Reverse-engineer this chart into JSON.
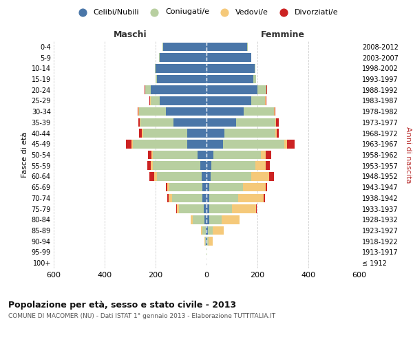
{
  "age_groups": [
    "100+",
    "95-99",
    "90-94",
    "85-89",
    "80-84",
    "75-79",
    "70-74",
    "65-69",
    "60-64",
    "55-59",
    "50-54",
    "45-49",
    "40-44",
    "35-39",
    "30-34",
    "25-29",
    "20-24",
    "15-19",
    "10-14",
    "5-9",
    "0-4"
  ],
  "birth_years": [
    "≤ 1912",
    "1913-1917",
    "1918-1922",
    "1923-1927",
    "1928-1932",
    "1933-1937",
    "1938-1942",
    "1943-1947",
    "1948-1952",
    "1953-1957",
    "1958-1962",
    "1963-1967",
    "1968-1972",
    "1973-1977",
    "1978-1982",
    "1983-1987",
    "1988-1992",
    "1993-1997",
    "1998-2002",
    "2003-2007",
    "2008-2012"
  ],
  "male": {
    "celibi": [
      1,
      1,
      2,
      4,
      8,
      12,
      15,
      15,
      20,
      25,
      35,
      75,
      75,
      130,
      160,
      185,
      220,
      195,
      200,
      185,
      170
    ],
    "coniugati": [
      0,
      0,
      3,
      12,
      45,
      95,
      120,
      130,
      175,
      185,
      175,
      215,
      175,
      130,
      105,
      35,
      20,
      5,
      2,
      2,
      2
    ],
    "vedovi": [
      0,
      0,
      2,
      5,
      10,
      10,
      15,
      10,
      10,
      8,
      5,
      5,
      5,
      3,
      2,
      2,
      1,
      0,
      0,
      0,
      0
    ],
    "divorziati": [
      0,
      0,
      0,
      0,
      0,
      2,
      5,
      5,
      20,
      15,
      15,
      20,
      10,
      5,
      3,
      2,
      1,
      0,
      0,
      0,
      0
    ]
  },
  "female": {
    "nubili": [
      1,
      1,
      3,
      5,
      10,
      10,
      10,
      12,
      15,
      18,
      28,
      65,
      70,
      115,
      145,
      175,
      200,
      185,
      190,
      175,
      160
    ],
    "coniugate": [
      0,
      1,
      5,
      18,
      50,
      90,
      115,
      130,
      160,
      175,
      185,
      240,
      200,
      155,
      120,
      55,
      35,
      10,
      3,
      2,
      2
    ],
    "vedove": [
      0,
      2,
      15,
      45,
      70,
      95,
      100,
      90,
      70,
      40,
      20,
      10,
      5,
      3,
      2,
      2,
      1,
      0,
      0,
      0,
      0
    ],
    "divorziate": [
      0,
      0,
      0,
      0,
      0,
      2,
      5,
      5,
      20,
      15,
      20,
      30,
      10,
      10,
      3,
      2,
      1,
      0,
      0,
      0,
      0
    ]
  },
  "colors": {
    "celibi": "#4a76a8",
    "coniugati": "#b8cfa0",
    "vedovi": "#f5c97a",
    "divorziati": "#cc2222"
  },
  "title": "Popolazione per età, sesso e stato civile - 2013",
  "subtitle": "COMUNE DI MACOMER (NU) - Dati ISTAT 1° gennaio 2013 - Elaborazione TUTTITALIA.IT",
  "xlabel_left": "Maschi",
  "xlabel_right": "Femmine",
  "ylabel_left": "Fasce di età",
  "ylabel_right": "Anni di nascita",
  "xlim": 600,
  "legend_labels": [
    "Celibi/Nubili",
    "Coniugati/e",
    "Vedovi/e",
    "Divorziati/e"
  ],
  "background_color": "#ffffff",
  "grid_color": "#cccccc"
}
